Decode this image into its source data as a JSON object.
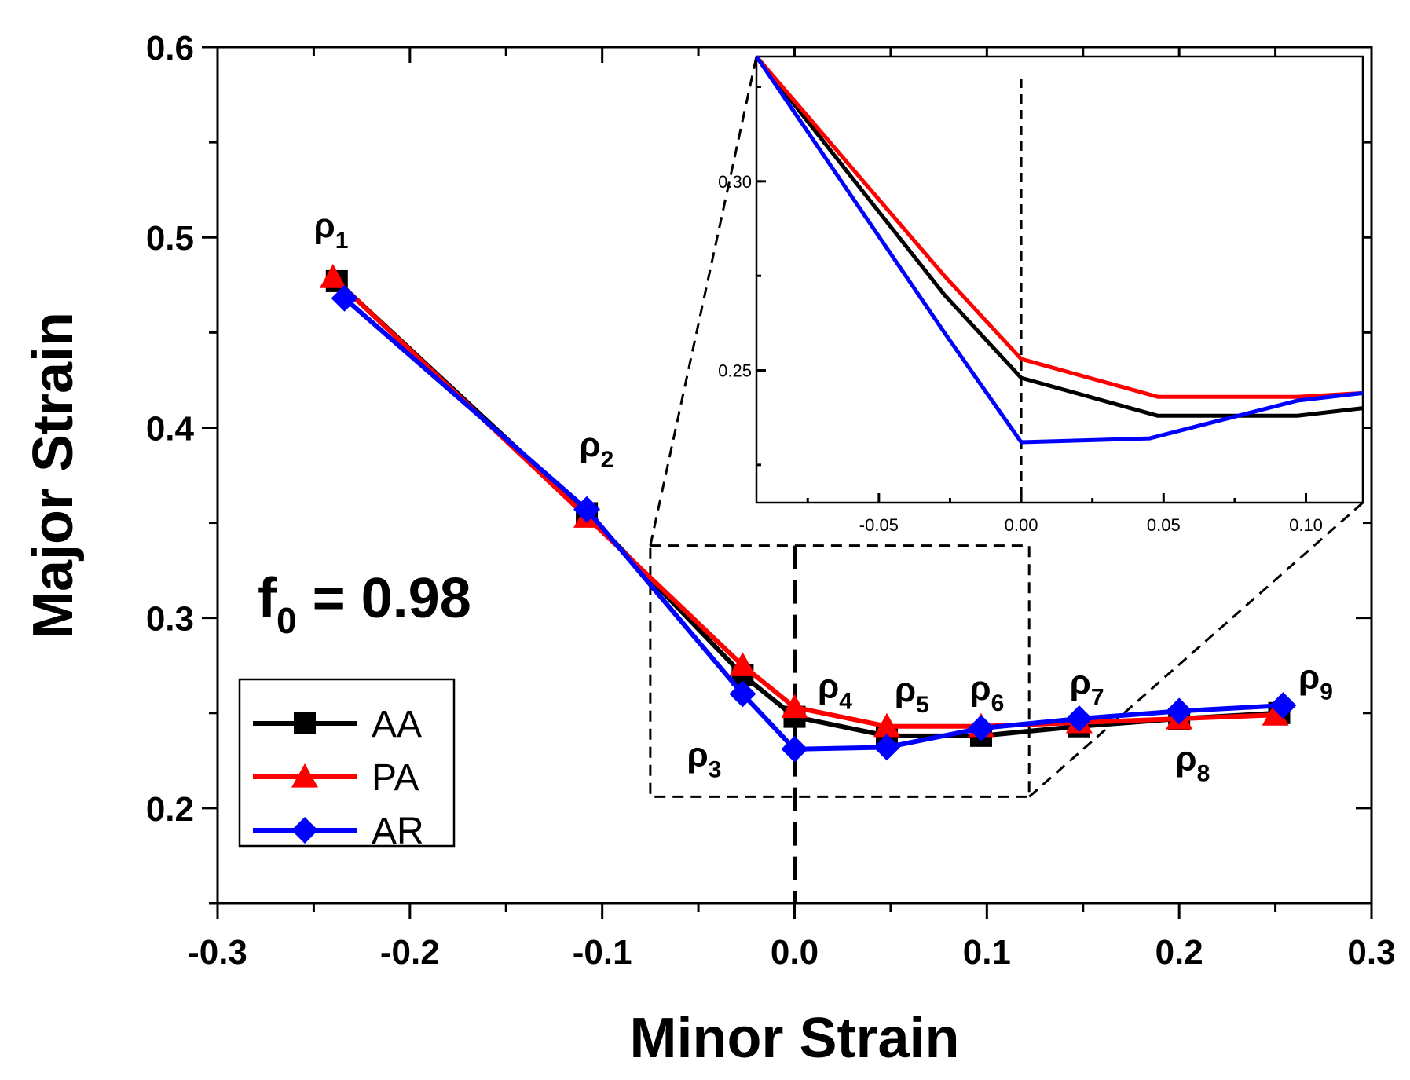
{
  "chart_data": {
    "type": "line",
    "xlabel": "Minor Strain",
    "ylabel": "Major Strain",
    "xlim": [
      -0.3,
      0.3
    ],
    "ylim": [
      0.15,
      0.6
    ],
    "x_ticks": [
      -0.3,
      -0.2,
      -0.1,
      0.0,
      0.1,
      0.2,
      0.3
    ],
    "x_tick_labels": [
      "-0.3",
      "-0.2",
      "-0.1",
      "0.0",
      "0.1",
      "0.2",
      "0.3"
    ],
    "y_ticks": [
      0.2,
      0.3,
      0.4,
      0.5,
      0.6
    ],
    "y_tick_labels": [
      "0.2",
      "0.3",
      "0.4",
      "0.5",
      "0.6"
    ],
    "annotation": {
      "prefix": "f",
      "sub": "0",
      "suffix": " = 0.98"
    },
    "series": [
      {
        "name": "AA",
        "color": "#000000",
        "marker": "square",
        "x": [
          -0.238,
          -0.108,
          -0.027,
          0.0,
          0.048,
          0.097,
          0.148,
          0.2,
          0.252
        ],
        "y": [
          0.477,
          0.355,
          0.27,
          0.248,
          0.238,
          0.238,
          0.243,
          0.247,
          0.25
        ]
      },
      {
        "name": "PA",
        "color": "#ff0000",
        "marker": "triangle",
        "x": [
          -0.24,
          -0.108,
          -0.027,
          0.0,
          0.048,
          0.097,
          0.148,
          0.2,
          0.25
        ],
        "y": [
          0.479,
          0.353,
          0.275,
          0.253,
          0.243,
          0.243,
          0.245,
          0.247,
          0.249
        ]
      },
      {
        "name": "AR",
        "color": "#0000ff",
        "marker": "diamond",
        "x": [
          -0.234,
          -0.108,
          -0.027,
          0.0,
          0.048,
          0.097,
          0.148,
          0.2,
          0.254
        ],
        "y": [
          0.468,
          0.357,
          0.26,
          0.231,
          0.232,
          0.242,
          0.247,
          0.251,
          0.254
        ]
      }
    ],
    "point_labels": [
      {
        "sym": "ρ",
        "sub": "1",
        "x": -0.241,
        "y": 0.5
      },
      {
        "sym": "ρ",
        "sub": "2",
        "x": -0.103,
        "y": 0.385
      },
      {
        "sym": "ρ",
        "sub": "3",
        "x": -0.047,
        "y": 0.222
      },
      {
        "sym": "ρ",
        "sub": "4",
        "x": 0.021,
        "y": 0.258
      },
      {
        "sym": "ρ",
        "sub": "5",
        "x": 0.061,
        "y": 0.256
      },
      {
        "sym": "ρ",
        "sub": "6",
        "x": 0.1,
        "y": 0.257
      },
      {
        "sym": "ρ",
        "sub": "7",
        "x": 0.152,
        "y": 0.26
      },
      {
        "sym": "ρ",
        "sub": "8",
        "x": 0.207,
        "y": 0.22
      },
      {
        "sym": "ρ",
        "sub": "9",
        "x": 0.271,
        "y": 0.263
      }
    ],
    "zoom_box": {
      "xlim": [
        -0.075,
        0.122
      ],
      "ylim": [
        0.206,
        0.338
      ]
    },
    "inset": {
      "xlim": [
        -0.093,
        0.12
      ],
      "ylim": [
        0.215,
        0.333
      ],
      "x_ticks": [
        -0.05,
        0.0,
        0.05,
        0.1
      ],
      "x_tick_labels": [
        "-0.05",
        "0.00",
        "0.05",
        "0.10"
      ],
      "y_ticks": [
        0.25,
        0.3
      ],
      "y_tick_labels": [
        "0.25",
        "0.30"
      ],
      "series": [
        {
          "name": "AA",
          "color": "#000000",
          "x": [
            -0.093,
            -0.027,
            0.0,
            0.048,
            0.097,
            0.12
          ],
          "y": [
            0.333,
            0.27,
            0.248,
            0.238,
            0.238,
            0.24
          ]
        },
        {
          "name": "PA",
          "color": "#ff0000",
          "x": [
            -0.093,
            -0.027,
            0.0,
            0.048,
            0.097,
            0.12
          ],
          "y": [
            0.333,
            0.275,
            0.253,
            0.243,
            0.243,
            0.244
          ]
        },
        {
          "name": "AR",
          "color": "#0000ff",
          "x": [
            -0.093,
            -0.027,
            0.0,
            0.045,
            0.097,
            0.12
          ],
          "y": [
            0.333,
            0.26,
            0.231,
            0.232,
            0.242,
            0.244
          ]
        }
      ]
    }
  }
}
